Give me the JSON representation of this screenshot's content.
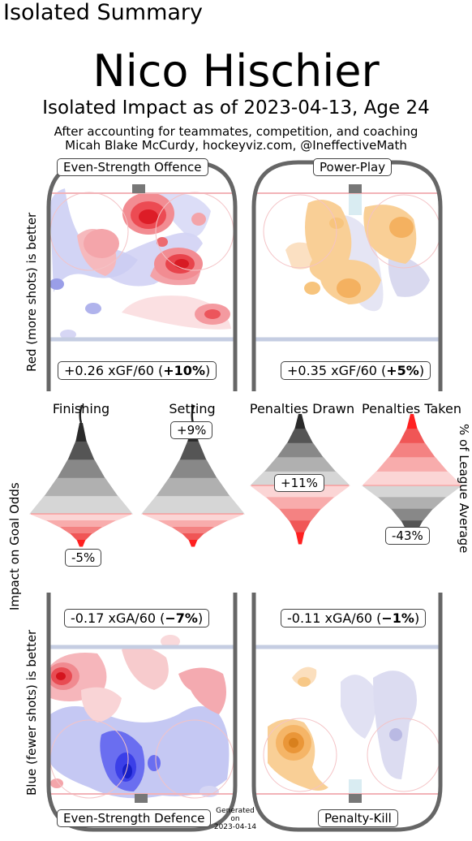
{
  "header": {
    "top_label": "Isolated Summary",
    "player_name": "Nico Hischier",
    "impact_line": "Isolated Impact as of 2023-04-13, Age 24",
    "subtitle_1": "After accounting for teammates, competition, and coaching",
    "subtitle_2": "Micah Blake McCurdy, hockeyviz.com, @IneffectiveMath"
  },
  "side_labels": {
    "left_top": "Red (more shots) is better",
    "left_middle": "Impact on Goal Odds",
    "left_bottom": "Blue (fewer shots) is better",
    "right_middle": "% of League Average"
  },
  "footer": {
    "generated_1": "Generated",
    "generated_2": "on",
    "generated_3": "2023-04-14"
  },
  "colors": {
    "rink_outline": "#666666",
    "red_line": "#f2b3b8",
    "blue_line": "#c5cde2",
    "offence_red": "#e8202a",
    "defence_blue": "#2233dd",
    "pp_orange": "#f0a040",
    "pk_purple": "#9a9ad0",
    "violin_grey": "#333333",
    "violin_red": "#ff2222"
  },
  "chart_data": [
    {
      "type": "heatmap",
      "panel": "Even-Strength Offence",
      "label": "Even-Strength Offence",
      "summary_value": "+0.26 xGF/60",
      "summary_pct": "+10%",
      "xGF_per_60": 0.26,
      "pct_vs_league": 10
    },
    {
      "type": "heatmap",
      "panel": "Power-Play",
      "label": "Power-Play",
      "summary_value": "+0.35 xGF/60",
      "summary_pct": "+5%",
      "xGF_per_60": 0.35,
      "pct_vs_league": 5
    },
    {
      "type": "heatmap",
      "panel": "Even-Strength Defence",
      "label": "Even-Strength Defence",
      "summary_value": "-0.17 xGA/60",
      "summary_pct": "−7%",
      "xGA_per_60": -0.17,
      "pct_vs_league": -7
    },
    {
      "type": "heatmap",
      "panel": "Penalty-Kill",
      "label": "Penalty-Kill",
      "summary_value": "-0.11 xGA/60",
      "summary_pct": "−1%",
      "xGA_per_60": -0.11,
      "pct_vs_league": -1
    },
    {
      "type": "bar",
      "panel": "Impact violins",
      "categories": [
        "Finishing",
        "Setting",
        "Penalties Drawn",
        "Penalties Taken"
      ],
      "values": [
        -5,
        9,
        11,
        -43
      ],
      "value_labels": [
        "-5%",
        "+9%",
        "+11%",
        "-43%"
      ],
      "ylabel": "Impact on Goal Odds"
    }
  ]
}
